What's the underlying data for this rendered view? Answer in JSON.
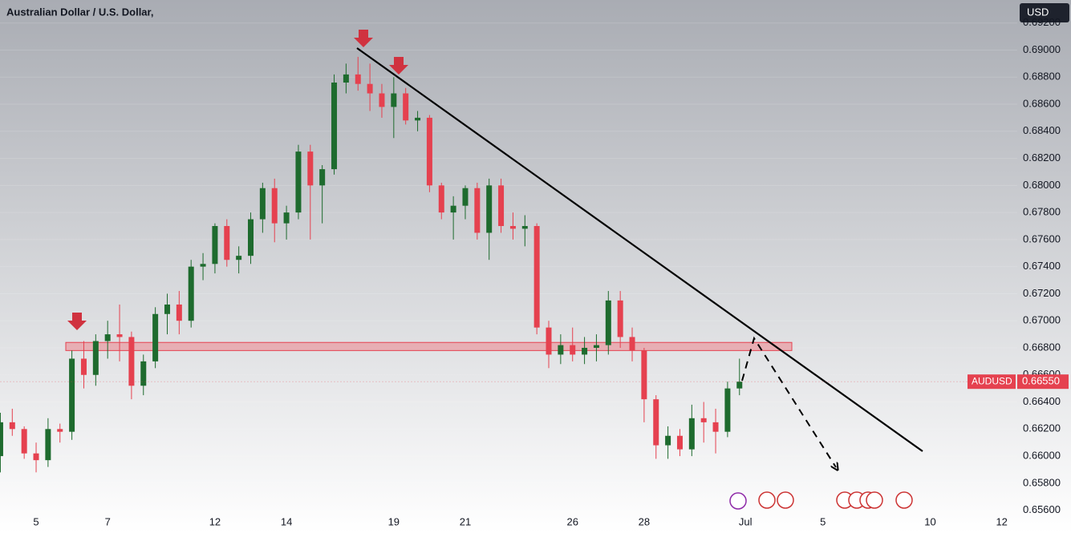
{
  "chart_data": {
    "type": "candlestick",
    "title": "Australian Dollar / U.S. Dollar,",
    "currency": "USD",
    "symbol": "AUDUSD",
    "last_price": {
      "value": 0.6655,
      "label": "0.66550"
    },
    "up_color": "#1e6b2e",
    "down_color": "#e5414f",
    "open": [
      0.66,
      0.6625,
      0.662,
      0.6602,
      0.6597,
      0.662,
      0.6618,
      0.6672,
      0.666,
      0.6685,
      0.669,
      0.6688,
      0.6652,
      0.667,
      0.6705,
      0.6712,
      0.67,
      0.674,
      0.6742,
      0.677,
      0.6745,
      0.6748,
      0.6775,
      0.6798,
      0.6772,
      0.678,
      0.6825,
      0.68,
      0.6812,
      0.6876,
      0.6882,
      0.6875,
      0.6868,
      0.6858,
      0.6868,
      0.6848,
      0.685,
      0.68,
      0.678,
      0.6785,
      0.6798,
      0.6765,
      0.68,
      0.677,
      0.6768,
      0.677,
      0.6695,
      0.6675,
      0.6682,
      0.6675,
      0.668,
      0.6682,
      0.6715,
      0.6688,
      0.6678,
      0.6642,
      0.6608,
      0.6615,
      0.6605,
      0.6628,
      0.6625,
      0.6618,
      0.665
    ],
    "high": [
      0.6632,
      0.6635,
      0.6622,
      0.661,
      0.6628,
      0.6624,
      0.6678,
      0.6685,
      0.669,
      0.67,
      0.6712,
      0.6692,
      0.6675,
      0.671,
      0.672,
      0.6722,
      0.6745,
      0.675,
      0.6772,
      0.6775,
      0.6755,
      0.678,
      0.6802,
      0.6805,
      0.6785,
      0.683,
      0.683,
      0.6815,
      0.6882,
      0.689,
      0.6895,
      0.689,
      0.6875,
      0.688,
      0.6872,
      0.6855,
      0.6852,
      0.6802,
      0.6792,
      0.68,
      0.6802,
      0.6805,
      0.6805,
      0.678,
      0.6778,
      0.6772,
      0.67,
      0.669,
      0.6695,
      0.6688,
      0.669,
      0.6722,
      0.6722,
      0.6695,
      0.668,
      0.6645,
      0.6622,
      0.662,
      0.6638,
      0.664,
      0.6635,
      0.6655,
      0.6672
    ],
    "low": [
      0.6588,
      0.6615,
      0.6598,
      0.6588,
      0.6592,
      0.661,
      0.6612,
      0.665,
      0.6652,
      0.6672,
      0.667,
      0.6642,
      0.6645,
      0.6665,
      0.669,
      0.669,
      0.6695,
      0.673,
      0.6735,
      0.674,
      0.6735,
      0.6742,
      0.6765,
      0.6758,
      0.676,
      0.6775,
      0.676,
      0.6772,
      0.6808,
      0.6868,
      0.687,
      0.6855,
      0.685,
      0.6835,
      0.6845,
      0.684,
      0.6795,
      0.6775,
      0.676,
      0.6775,
      0.676,
      0.6745,
      0.6765,
      0.676,
      0.6755,
      0.669,
      0.6665,
      0.6668,
      0.667,
      0.6668,
      0.667,
      0.6675,
      0.668,
      0.667,
      0.6625,
      0.6598,
      0.6598,
      0.66,
      0.66,
      0.661,
      0.6602,
      0.6614,
      0.6645
    ],
    "close": [
      0.6625,
      0.662,
      0.6602,
      0.6597,
      0.662,
      0.6618,
      0.6672,
      0.666,
      0.6685,
      0.669,
      0.6688,
      0.6652,
      0.667,
      0.6705,
      0.6712,
      0.67,
      0.674,
      0.6742,
      0.677,
      0.6745,
      0.6748,
      0.6775,
      0.6798,
      0.6772,
      0.678,
      0.6825,
      0.68,
      0.6812,
      0.6876,
      0.6882,
      0.6875,
      0.6868,
      0.6858,
      0.6868,
      0.6848,
      0.685,
      0.68,
      0.678,
      0.6785,
      0.6798,
      0.6765,
      0.68,
      0.677,
      0.6768,
      0.677,
      0.6695,
      0.6675,
      0.6682,
      0.6675,
      0.668,
      0.6682,
      0.6715,
      0.6688,
      0.6678,
      0.6642,
      0.6608,
      0.6615,
      0.6605,
      0.6628,
      0.6625,
      0.6618,
      0.665,
      0.6655
    ],
    "zone": [
      0.6678,
      0.6684
    ],
    "ylim": [
      0.6558,
      0.6937
    ],
    "yticks": [
      {
        "value": 0.692,
        "label": "0.69200"
      },
      {
        "value": 0.69,
        "label": "0.69000"
      },
      {
        "value": 0.688,
        "label": "0.68800"
      },
      {
        "value": 0.686,
        "label": "0.68600"
      },
      {
        "value": 0.684,
        "label": "0.68400"
      },
      {
        "value": 0.682,
        "label": "0.68200"
      },
      {
        "value": 0.68,
        "label": "0.68000"
      },
      {
        "value": 0.678,
        "label": "0.67800"
      },
      {
        "value": 0.676,
        "label": "0.67600"
      },
      {
        "value": 0.674,
        "label": "0.67400"
      },
      {
        "value": 0.672,
        "label": "0.67200"
      },
      {
        "value": 0.67,
        "label": "0.67000"
      },
      {
        "value": 0.668,
        "label": "0.66800"
      },
      {
        "value": 0.666,
        "label": "0.66600"
      },
      {
        "value": 0.664,
        "label": "0.66400"
      },
      {
        "value": 0.662,
        "label": "0.66200"
      },
      {
        "value": 0.66,
        "label": "0.66000"
      },
      {
        "value": 0.658,
        "label": "0.65800"
      },
      {
        "value": 0.656,
        "label": "0.65600"
      }
    ],
    "xlim": [
      -6.06,
      164.6
    ],
    "xticks": [
      {
        "value": 0,
        "label": "5"
      },
      {
        "value": 12,
        "label": "7"
      },
      {
        "value": 30,
        "label": "12"
      },
      {
        "value": 42,
        "label": "14"
      },
      {
        "value": 60,
        "label": "19"
      },
      {
        "value": 72,
        "label": "21"
      },
      {
        "value": 90,
        "label": "26"
      },
      {
        "value": 102,
        "label": "28"
      },
      {
        "value": 119,
        "label": "Jul"
      },
      {
        "value": 132,
        "label": "5"
      },
      {
        "value": 150,
        "label": "10"
      },
      {
        "value": 162,
        "label": "12"
      }
    ]
  }
}
